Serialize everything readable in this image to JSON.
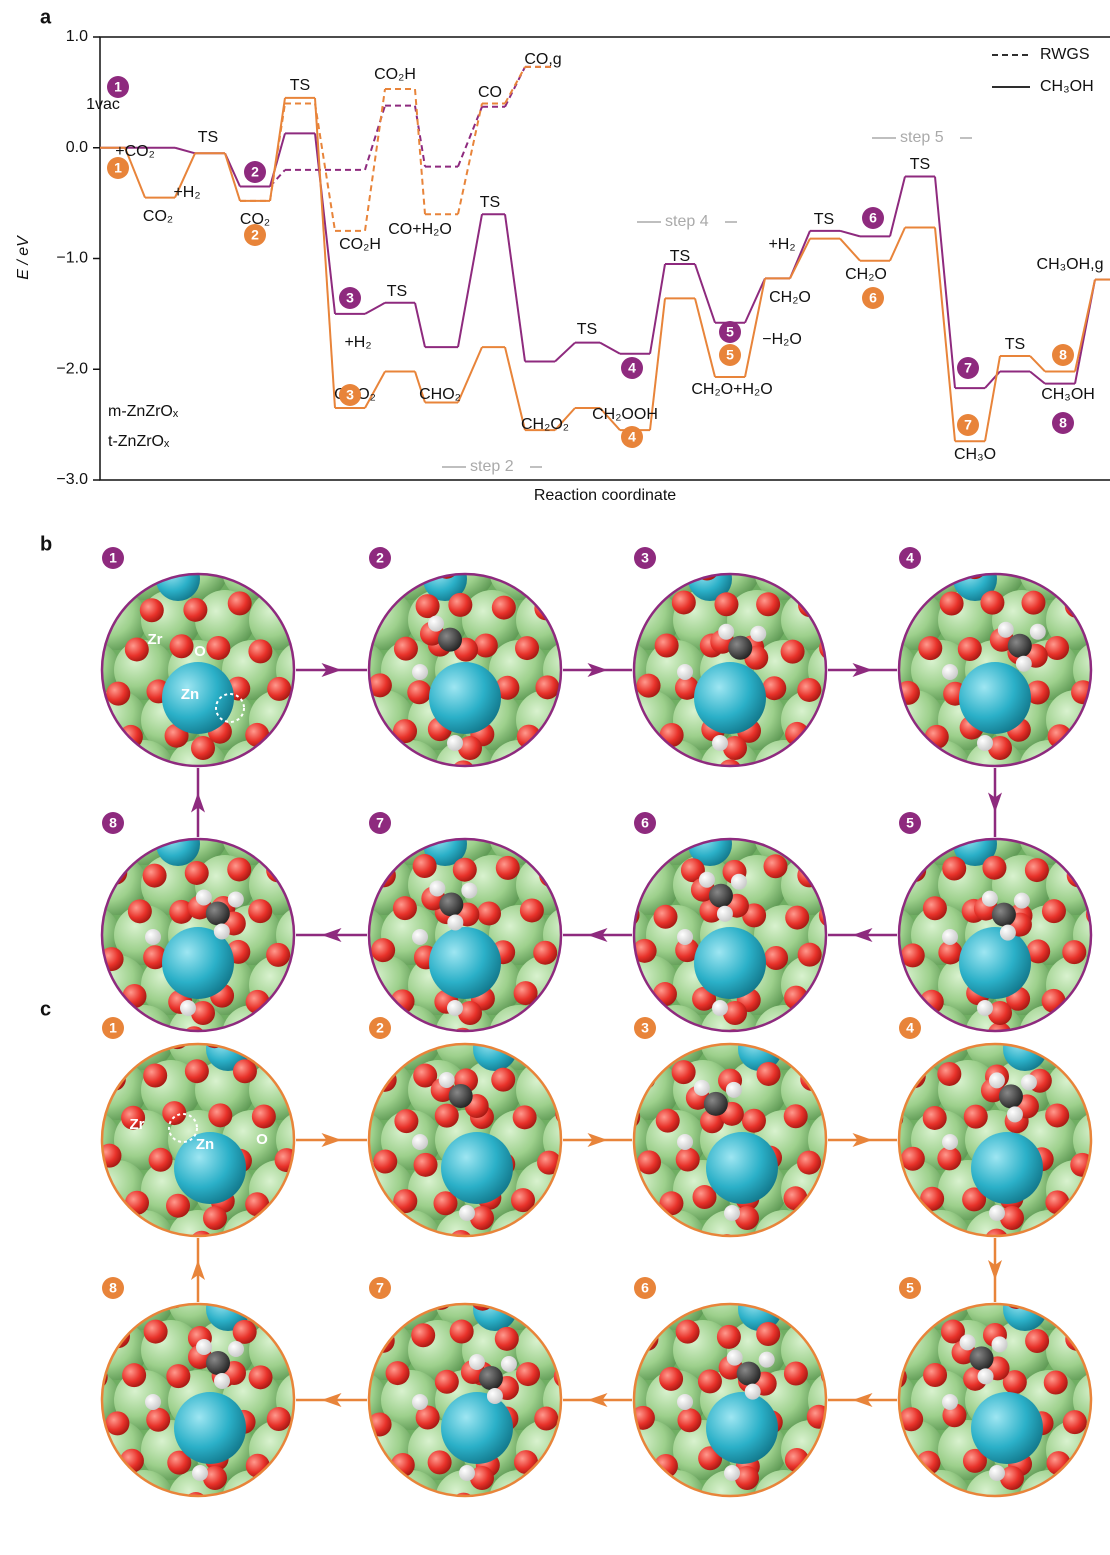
{
  "chart_data": {
    "type": "energy-profile",
    "panel_label": "a",
    "xlabel": "Reaction coordinate",
    "ylabel": "E / eV",
    "ylim": [
      -3,
      1
    ],
    "yticks": [
      {
        "value": 1,
        "label": "1.0"
      },
      {
        "value": 0,
        "label": "0.0"
      },
      {
        "value": -1,
        "label": "−1.0"
      },
      {
        "value": -2,
        "label": "−2.0"
      },
      {
        "value": -3,
        "label": "−3.0"
      }
    ],
    "series": [
      {
        "name": "m-ZnZrOₓ",
        "color": "#8e2a7e",
        "values": [
          0.0,
          0.0,
          -0.05,
          -0.35,
          0.13,
          -1.5,
          -1.4,
          -1.8,
          -0.6,
          -1.93,
          -1.76,
          -1.86,
          -1.05,
          -1.58,
          -1.18,
          -0.75,
          -0.8,
          -0.26,
          -2.17,
          -2.02,
          -2.13,
          -1.19
        ],
        "rwgs_values": [
          null,
          null,
          null,
          -0.35,
          -0.2,
          -0.2,
          0.38,
          -0.17,
          0.37,
          0.73,
          null,
          null,
          null,
          null,
          null,
          null,
          null,
          null,
          null,
          null,
          null,
          null
        ]
      },
      {
        "name": "t-ZnZrOₓ",
        "color": "#e8843a",
        "values": [
          0.0,
          -0.45,
          -0.05,
          -0.48,
          0.45,
          -2.35,
          -2.02,
          -2.3,
          -1.8,
          -2.55,
          -2.35,
          -2.55,
          -1.36,
          -2.07,
          -1.18,
          -0.82,
          -1.02,
          -0.72,
          -2.65,
          -1.88,
          -2.02,
          -1.19
        ],
        "rwgs_values": [
          null,
          null,
          null,
          -0.48,
          0.4,
          -0.75,
          0.53,
          -0.6,
          0.4,
          0.73,
          null,
          null,
          null,
          null,
          null,
          null,
          null,
          null,
          null,
          null,
          null,
          null
        ]
      }
    ],
    "line_styles": [
      {
        "name": "RWGS",
        "dashed": true
      },
      {
        "name": "CH₃OH",
        "dashed": false
      }
    ],
    "badges": [
      "1",
      "2",
      "3",
      "4",
      "5",
      "6",
      "7",
      "8"
    ],
    "annotations": [
      "1vac",
      "+CO₂",
      "TS",
      "+H₂",
      "CO₂",
      "CO₂",
      "TS",
      "CO₂H",
      "CO",
      "CO,g",
      "CO₂H",
      "CO+H₂O",
      "TS",
      "TS",
      "+H₂",
      "CHO₂",
      "CHO₂",
      "TS",
      "CH₂O₂",
      "CH₂OOH",
      "TS",
      "+H₂",
      "CH₂O",
      "−H₂O",
      "CH₂O+H₂O",
      "TS",
      "CH₂O",
      "TS",
      "TS",
      "CH₃OH,g",
      "CH₃OH",
      "CH₃O",
      "step 2",
      "step 4",
      "step 5"
    ]
  },
  "panels": [
    {
      "label": "b",
      "steps": [
        "1",
        "2",
        "3",
        "4",
        "5",
        "6",
        "7",
        "8"
      ],
      "atom_labels": [
        "Zr",
        "O",
        "Zn"
      ]
    },
    {
      "label": "c",
      "steps": [
        "1",
        "2",
        "3",
        "4",
        "5",
        "6",
        "7",
        "8"
      ],
      "atom_labels": [
        "Zr",
        "O",
        "Zn"
      ]
    }
  ]
}
